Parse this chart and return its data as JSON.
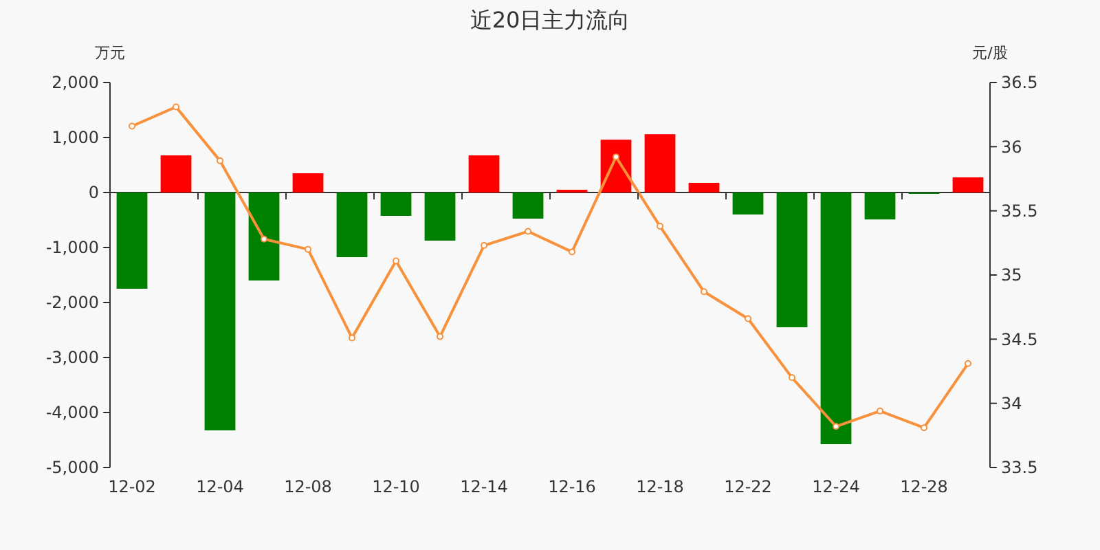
{
  "chart_data": {
    "type": "bar",
    "title": "近20日主力流向",
    "ylabel": "万元",
    "y2label": "元/股",
    "categories": [
      "12-02",
      null,
      "12-04",
      null,
      "12-08",
      null,
      "12-10",
      null,
      "12-14",
      null,
      "12-16",
      null,
      "12-18",
      null,
      "12-22",
      null,
      "12-24",
      null,
      "12-28",
      null
    ],
    "series": [
      {
        "colors": [
          "#008000",
          "#ff0000",
          "#008000",
          "#008000",
          "#ff0000",
          "#008000",
          "#008000",
          "#008000",
          "#ff0000",
          "#008000",
          "#ff0000",
          "#ff0000",
          "#ff0000",
          "#ff0000",
          "#008000",
          "#008000",
          "#008000",
          "#008000",
          "#008000",
          "#ff0000"
        ],
        "values": [
          -1750,
          675,
          -4325,
          -1600,
          350,
          -1175,
          -425,
          -875,
          675,
          -475,
          50,
          960,
          1060,
          175,
          -400,
          -2450,
          -4575,
          -490,
          -25,
          275
        ]
      },
      {
        "type": "line",
        "axis": "y2",
        "color": "#f7913b",
        "marker": "circle",
        "values": [
          36.16,
          36.31,
          35.89,
          35.28,
          35.2,
          34.51,
          35.11,
          34.52,
          35.23,
          35.34,
          35.18,
          35.92,
          35.38,
          34.87,
          34.66,
          34.2,
          33.82,
          33.94,
          33.81,
          34.31
        ]
      }
    ],
    "ylim": [
      -5000,
      2000
    ],
    "yticks": [
      {
        "value": -5000,
        "label": "-5,000"
      },
      {
        "value": -4000,
        "label": "-4,000"
      },
      {
        "value": -3000,
        "label": "-3,000"
      },
      {
        "value": -2000,
        "label": "-2,000"
      },
      {
        "value": -1000,
        "label": "-1,000"
      },
      0,
      {
        "value": 1000,
        "label": "1,000"
      },
      {
        "value": 2000,
        "label": "2,000"
      }
    ],
    "y2lim": [
      33.5,
      36.5
    ],
    "y2ticks": [
      33.5,
      34,
      34.5,
      35,
      35.5,
      36,
      36.5
    ]
  }
}
